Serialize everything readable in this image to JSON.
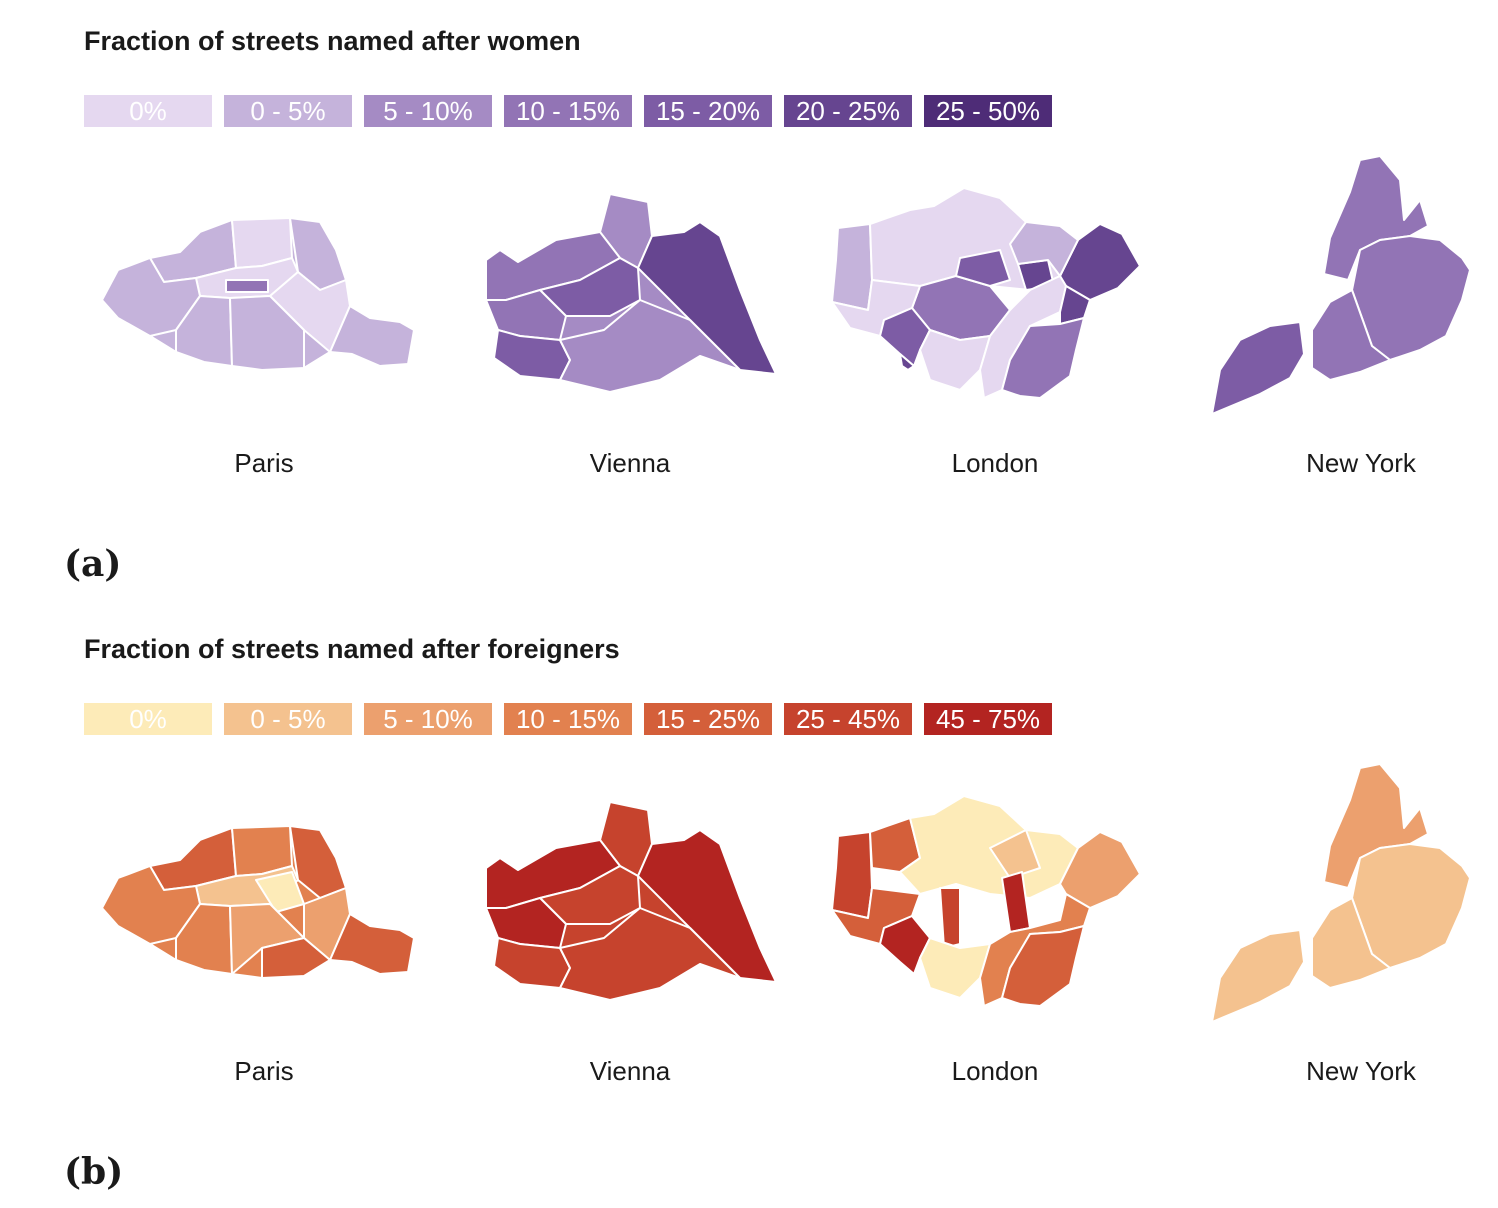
{
  "panels": [
    {
      "label": "(a)",
      "title": "Fraction of streets named after women",
      "legend": [
        {
          "label": "0%",
          "color": "#e5d8f0"
        },
        {
          "label": "0 - 5%",
          "color": "#c5b3db"
        },
        {
          "label": "5 - 10%",
          "color": "#a58bc4"
        },
        {
          "label": "10 - 15%",
          "color": "#9274b5"
        },
        {
          "label": "15 - 20%",
          "color": "#7d5ca5"
        },
        {
          "label": "20 - 25%",
          "color": "#664590"
        },
        {
          "label": "25 - 50%",
          "color": "#4e2c77"
        }
      ],
      "cities": [
        {
          "name": "Paris",
          "category": "0 - 5%"
        },
        {
          "name": "Vienna",
          "category": "10 - 15%"
        },
        {
          "name": "London",
          "category": "0 - 5%"
        },
        {
          "name": "New York",
          "category": "15 - 20%"
        }
      ]
    },
    {
      "label": "(b)",
      "title": "Fraction of streets named after foreigners",
      "legend": [
        {
          "label": "0%",
          "color": "#fdebb8"
        },
        {
          "label": "0 - 5%",
          "color": "#f4c28f"
        },
        {
          "label": "5 - 10%",
          "color": "#eca06e"
        },
        {
          "label": "10 - 15%",
          "color": "#e2814f"
        },
        {
          "label": "15 - 25%",
          "color": "#d45f3a"
        },
        {
          "label": "25 - 45%",
          "color": "#c6432d"
        },
        {
          "label": "45 - 75%",
          "color": "#b32421"
        }
      ],
      "cities": [
        {
          "name": "Paris",
          "category": "10 - 15%"
        },
        {
          "name": "Vienna",
          "category": "25 - 45%"
        },
        {
          "name": "London",
          "category": "5 - 10%"
        },
        {
          "name": "New York",
          "category": "0 - 5%"
        }
      ]
    }
  ]
}
